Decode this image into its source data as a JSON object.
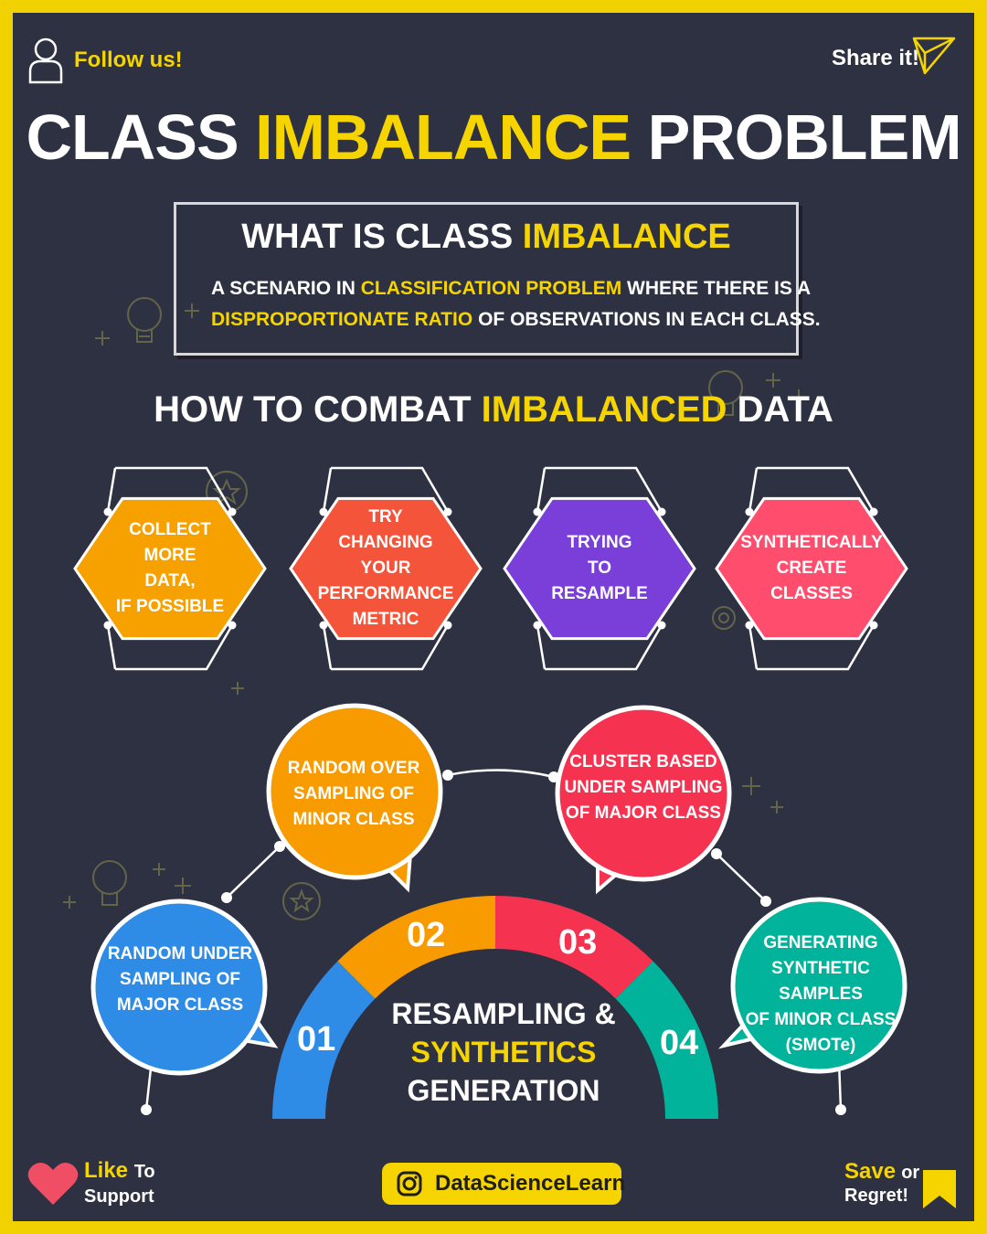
{
  "header": {
    "follow_label": "Follow us!",
    "share_label": "Share it!",
    "title_part1": "CLASS",
    "title_part2": "IMBALANCE",
    "title_part3": "PROBLEM"
  },
  "definition": {
    "heading_part1": "WHAT IS CLASS",
    "heading_part2": "IMBALANCE",
    "line1_a": "A SCENARIO IN",
    "line1_b": "CLASSIFICATION PROBLEM",
    "line1_c": "WHERE THERE IS A",
    "line2_a": "DISPROPORTIONATE RATIO",
    "line2_b": "OF OBSERVATIONS IN EACH CLASS."
  },
  "combat": {
    "heading_part1": "HOW TO COMBAT",
    "heading_part2": "IMBALANCED",
    "heading_part3": "DATA",
    "hexagons": [
      {
        "lines": [
          "COLLECT",
          "MORE",
          "DATA,",
          "IF POSSIBLE"
        ],
        "color": "#f7a100"
      },
      {
        "lines": [
          "TRY",
          "CHANGING",
          "YOUR",
          "PERFORMANCE",
          "METRIC"
        ],
        "color": "#f4553a"
      },
      {
        "lines": [
          "TRYING",
          "TO",
          "RESAMPLE"
        ],
        "color": "#7a3fd8"
      },
      {
        "lines": [
          "SYNTHETICALLY",
          "CREATE",
          "CLASSES"
        ],
        "color": "#ff4d6d"
      }
    ]
  },
  "resampling": {
    "center_line1": "RESAMPLING &",
    "center_line2": "SYNTHETICS",
    "center_line3": "GENERATION",
    "segments": [
      {
        "num": "01",
        "color": "#2e8be6"
      },
      {
        "num": "02",
        "color": "#f79b00"
      },
      {
        "num": "03",
        "color": "#f5324f"
      },
      {
        "num": "04",
        "color": "#00b39a"
      }
    ],
    "bubbles": [
      {
        "lines": [
          "RANDOM UNDER",
          "SAMPLING OF",
          "MAJOR CLASS"
        ],
        "color": "#2e8be6"
      },
      {
        "lines": [
          "RANDOM OVER",
          "SAMPLING OF",
          "MINOR CLASS"
        ],
        "color": "#f79b00"
      },
      {
        "lines": [
          "CLUSTER BASED",
          "UNDER SAMPLING",
          "OF MAJOR CLASS"
        ],
        "color": "#f5324f"
      },
      {
        "lines": [
          "GENERATING",
          "SYNTHETIC SAMPLES",
          "OF MINOR CLASS",
          "(SMOTe)"
        ],
        "color": "#00b39a"
      }
    ]
  },
  "footer": {
    "like_1": "Like",
    "like_2": "To",
    "like_3": "Support",
    "handle": "DataScienceLearn",
    "save_1": "Save",
    "save_2": "or",
    "save_3": "Regret!"
  }
}
